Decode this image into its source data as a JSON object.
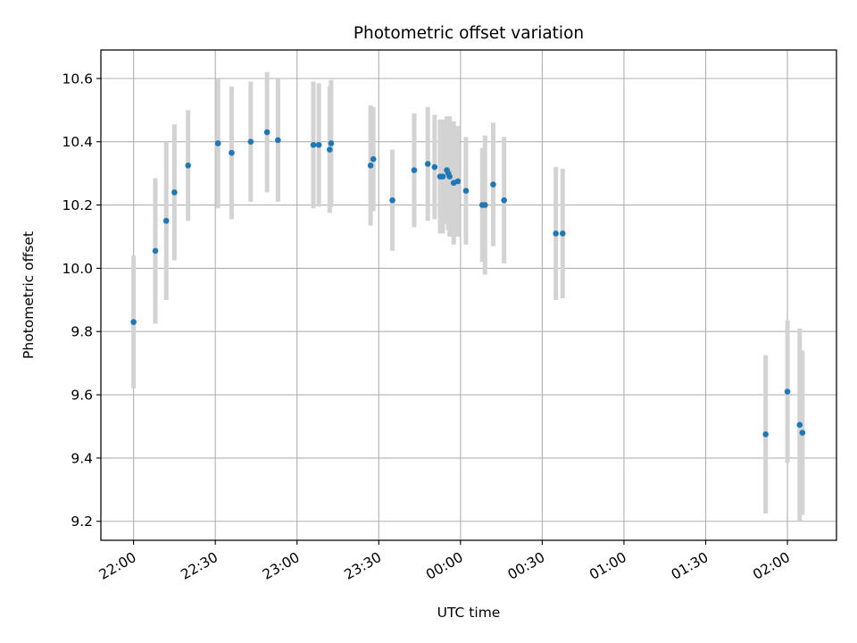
{
  "chart_data": {
    "type": "scatter",
    "title": "Photometric offset variation",
    "xlabel": "UTC time",
    "ylabel": "Photometric offset",
    "x_axis_kind": "time",
    "xlim": [
      "21:48",
      "02:18"
    ],
    "ylim": [
      9.14,
      10.69
    ],
    "x_ticks": [
      "22:00",
      "22:30",
      "23:00",
      "23:30",
      "00:00",
      "00:30",
      "01:00",
      "01:30",
      "02:00"
    ],
    "y_ticks": [
      "9.2",
      "9.4",
      "9.6",
      "9.8",
      "10.0",
      "10.2",
      "10.4",
      "10.6"
    ],
    "y_tick_values": [
      9.2,
      9.4,
      9.6,
      9.8,
      10.0,
      10.2,
      10.4,
      10.6
    ],
    "x_tick_rotation_deg": 30,
    "grid": true,
    "marker_color": "#1f77b4",
    "errorbar_color": "#d3d3d3",
    "series": [
      {
        "points": [
          {
            "x": "22:00",
            "y": 9.83,
            "err": 0.21
          },
          {
            "x": "22:08",
            "y": 10.055,
            "err": 0.23
          },
          {
            "x": "22:12",
            "y": 10.15,
            "err": 0.25
          },
          {
            "x": "22:15",
            "y": 10.24,
            "err": 0.215
          },
          {
            "x": "22:20",
            "y": 10.325,
            "err": 0.175
          },
          {
            "x": "22:31",
            "y": 10.395,
            "err": 0.205
          },
          {
            "x": "22:36",
            "y": 10.365,
            "err": 0.21
          },
          {
            "x": "22:43",
            "y": 10.4,
            "err": 0.19
          },
          {
            "x": "22:49",
            "y": 10.43,
            "err": 0.19
          },
          {
            "x": "22:53",
            "y": 10.405,
            "err": 0.195
          },
          {
            "x": "23:06",
            "y": 10.39,
            "err": 0.2
          },
          {
            "x": "23:08",
            "y": 10.39,
            "err": 0.195
          },
          {
            "x": "23:12",
            "y": 10.375,
            "err": 0.2
          },
          {
            "x": "23:12.5",
            "y": 10.395,
            "err": 0.2
          },
          {
            "x": "23:27",
            "y": 10.325,
            "err": 0.19
          },
          {
            "x": "23:28",
            "y": 10.345,
            "err": 0.165
          },
          {
            "x": "23:35",
            "y": 10.215,
            "err": 0.16
          },
          {
            "x": "23:43",
            "y": 10.31,
            "err": 0.18
          },
          {
            "x": "23:48",
            "y": 10.33,
            "err": 0.18
          },
          {
            "x": "23:50.5",
            "y": 10.32,
            "err": 0.165
          },
          {
            "x": "23:52.5",
            "y": 10.29,
            "err": 0.18
          },
          {
            "x": "23:53.5",
            "y": 10.29,
            "err": 0.18
          },
          {
            "x": "23:55",
            "y": 10.31,
            "err": 0.17
          },
          {
            "x": "23:55.5",
            "y": 10.3,
            "err": 0.18
          },
          {
            "x": "23:56",
            "y": 10.29,
            "err": 0.19
          },
          {
            "x": "23:57.5",
            "y": 10.27,
            "err": 0.195
          },
          {
            "x": "23:59",
            "y": 10.275,
            "err": 0.175
          },
          {
            "x": "00:02",
            "y": 10.245,
            "err": 0.17
          },
          {
            "x": "00:08",
            "y": 10.2,
            "err": 0.18
          },
          {
            "x": "00:09",
            "y": 10.2,
            "err": 0.22
          },
          {
            "x": "00:12",
            "y": 10.265,
            "err": 0.195
          },
          {
            "x": "00:16",
            "y": 10.215,
            "err": 0.2
          },
          {
            "x": "00:35",
            "y": 10.11,
            "err": 0.21
          },
          {
            "x": "00:37.5",
            "y": 10.11,
            "err": 0.205
          },
          {
            "x": "01:52",
            "y": 9.475,
            "err": 0.25
          },
          {
            "x": "02:00",
            "y": 9.61,
            "err": 0.225
          },
          {
            "x": "02:04.5",
            "y": 9.505,
            "err": 0.305
          },
          {
            "x": "02:05.5",
            "y": 9.48,
            "err": 0.26
          }
        ]
      }
    ]
  }
}
